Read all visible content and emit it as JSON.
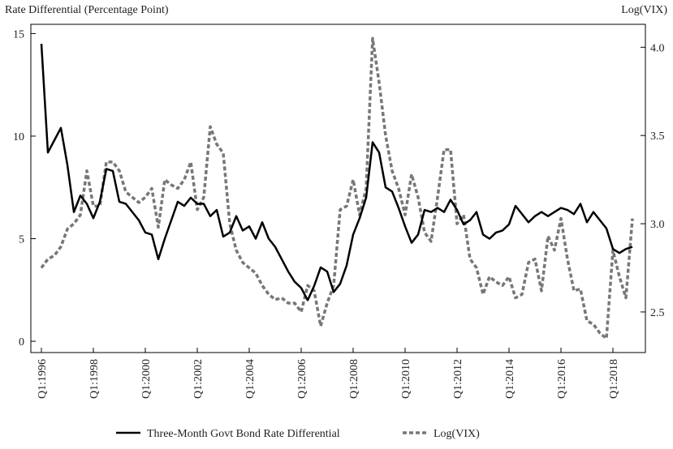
{
  "chart_data": {
    "type": "line",
    "y_label": "Rate Differential (Percentage Point)",
    "y2_label": "Log(VIX)",
    "categories": [
      "Q1:1996",
      null,
      null,
      null,
      null,
      null,
      null,
      null,
      "Q1:1998",
      null,
      null,
      null,
      null,
      null,
      null,
      null,
      "Q1:2000",
      null,
      null,
      null,
      null,
      null,
      null,
      null,
      "Q1:2002",
      null,
      null,
      null,
      null,
      null,
      null,
      null,
      "Q1:2004",
      null,
      null,
      null,
      null,
      null,
      null,
      null,
      "Q1:2006",
      null,
      null,
      null,
      null,
      null,
      null,
      null,
      "Q1:2008",
      null,
      null,
      null,
      null,
      null,
      null,
      null,
      "Q1:2010",
      null,
      null,
      null,
      null,
      null,
      null,
      null,
      "Q1:2012",
      null,
      null,
      null,
      null,
      null,
      null,
      null,
      "Q1:2014",
      null,
      null,
      null,
      null,
      null,
      null,
      null,
      "Q1:2016",
      null,
      null,
      null,
      null,
      null,
      null,
      null,
      "Q1:2018",
      null,
      null,
      null
    ],
    "series": [
      {
        "name": "Three-Month Govt Bond Rate Differential",
        "color": "#000000",
        "axis": "y",
        "values": [
          14.5,
          9.2,
          9.8,
          10.4,
          8.6,
          6.3,
          7.1,
          6.7,
          6.0,
          6.8,
          8.4,
          8.3,
          6.8,
          6.7,
          6.3,
          5.9,
          5.3,
          5.2,
          4.0,
          5.0,
          5.9,
          6.8,
          6.6,
          7.0,
          6.7,
          6.7,
          6.1,
          6.4,
          5.1,
          5.3,
          6.1,
          5.4,
          5.6,
          5.0,
          5.8,
          5.0,
          4.6,
          4.0,
          3.4,
          2.9,
          2.6,
          2.0,
          2.7,
          3.6,
          3.4,
          2.4,
          2.8,
          3.7,
          5.2,
          6.0,
          7.0,
          9.7,
          9.2,
          7.5,
          7.3,
          6.5,
          5.6,
          4.8,
          5.2,
          6.4,
          6.3,
          6.5,
          6.3,
          6.9,
          6.4,
          5.7,
          5.9,
          6.3,
          5.2,
          5.0,
          5.3,
          5.4,
          5.7,
          6.6,
          6.2,
          5.8,
          6.1,
          6.3,
          6.1,
          6.3,
          6.5,
          6.4,
          6.2,
          6.7,
          5.8,
          6.3,
          5.9,
          5.5,
          4.5,
          4.3,
          4.5,
          4.6
        ]
      },
      {
        "name": "Log(VIX)",
        "color": "#777777",
        "axis": "y2",
        "values": [
          2.75,
          2.8,
          2.82,
          2.87,
          2.97,
          3.0,
          3.05,
          3.3,
          3.1,
          3.1,
          3.35,
          3.35,
          3.3,
          3.18,
          3.15,
          3.12,
          3.15,
          3.2,
          2.98,
          3.25,
          3.22,
          3.2,
          3.25,
          3.35,
          3.08,
          3.15,
          3.55,
          3.45,
          3.4,
          3.0,
          2.85,
          2.78,
          2.75,
          2.72,
          2.65,
          2.6,
          2.57,
          2.58,
          2.55,
          2.55,
          2.5,
          2.65,
          2.62,
          2.42,
          2.55,
          2.65,
          3.08,
          3.1,
          3.25,
          3.05,
          3.2,
          4.05,
          3.8,
          3.5,
          3.3,
          3.2,
          3.05,
          3.28,
          3.15,
          2.95,
          2.9,
          3.15,
          3.42,
          3.42,
          3.0,
          3.05,
          2.8,
          2.75,
          2.6,
          2.7,
          2.67,
          2.65,
          2.7,
          2.58,
          2.6,
          2.78,
          2.8,
          2.62,
          2.93,
          2.85,
          3.03,
          2.8,
          2.62,
          2.63,
          2.45,
          2.43,
          2.38,
          2.35,
          2.85,
          2.7,
          2.58,
          3.03
        ]
      }
    ],
    "ylim": [
      -0.55,
      15.45
    ],
    "yticks": [
      0,
      5,
      10,
      15
    ],
    "y2lim": [
      2.27,
      4.13
    ],
    "y2ticks": [
      2.5,
      {
        "value": 3,
        "label": "3.0"
      },
      3.5,
      {
        "value": 4,
        "label": "4.0"
      }
    ],
    "legend": "bottom"
  }
}
